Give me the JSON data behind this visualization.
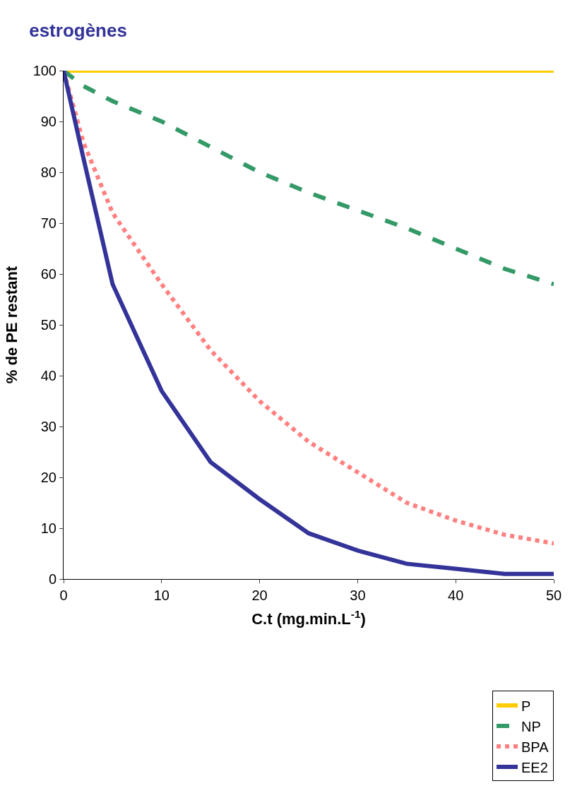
{
  "chart_data": {
    "type": "line",
    "title": "estrogènes",
    "xlabel": "C.t (mg.min.L$^{-1}$)",
    "ylabel": "% de PE restant",
    "xlim": [
      0,
      50
    ],
    "xticks": [
      0,
      10,
      20,
      30,
      40,
      50
    ],
    "ylim": [
      0,
      100
    ],
    "yticks": [
      0,
      10,
      20,
      30,
      40,
      50,
      60,
      70,
      80,
      90,
      100
    ],
    "legend": "bottom right",
    "marker": "none",
    "x": [
      0,
      2,
      5,
      10,
      15,
      20,
      25,
      30,
      35,
      40,
      45,
      50
    ],
    "series": [
      {
        "name": "P",
        "color": "#ffcc00",
        "line_style": "solid",
        "values": [
          100,
          100,
          100,
          100,
          100,
          100,
          100,
          100,
          100,
          100,
          100,
          100
        ]
      },
      {
        "name": "NP",
        "color": "#339966",
        "line_style": "dashed",
        "values": [
          100,
          97,
          94,
          90,
          85,
          80,
          76,
          72.5,
          69,
          65,
          61,
          58
        ]
      },
      {
        "name": "BPA",
        "color": "#ff8080",
        "line_style": "dotted",
        "values": [
          100,
          86,
          72,
          58,
          45,
          35,
          27,
          21,
          15,
          11.5,
          8.7,
          7
        ]
      },
      {
        "name": "EE2",
        "color": "#333399",
        "line_style": "solid",
        "values": [
          100,
          83,
          58,
          37,
          23,
          15.7,
          9,
          5.6,
          3,
          2,
          1,
          1
        ]
      }
    ]
  }
}
